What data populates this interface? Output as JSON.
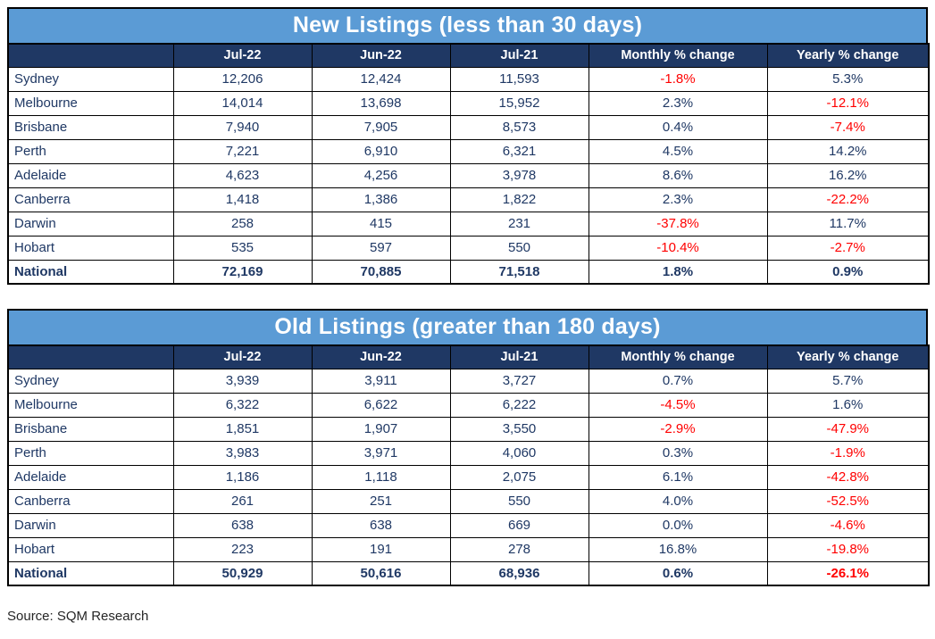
{
  "source": "Source: SQM Research",
  "colors": {
    "title_bg": "#5b9bd5",
    "header_bg": "#1f3864",
    "text_navy": "#1f3864",
    "negative_red": "#ff0000",
    "border_color": "#000000",
    "source_color": "#262626"
  },
  "chart_data": [
    {
      "type": "table",
      "title": "New Listings (less than 30 days)",
      "columns": [
        "",
        "Jul-22",
        "Jun-22",
        "Jul-21",
        "Monthly % change",
        "Yearly % change"
      ],
      "rows": [
        {
          "label": "Sydney",
          "cells": [
            "12,206",
            "12,424",
            "11,593",
            "-1.8%",
            "5.3%"
          ],
          "bold": false
        },
        {
          "label": "Melbourne",
          "cells": [
            "14,014",
            "13,698",
            "15,952",
            "2.3%",
            "-12.1%"
          ],
          "bold": false
        },
        {
          "label": "Brisbane",
          "cells": [
            "7,940",
            "7,905",
            "8,573",
            "0.4%",
            "-7.4%"
          ],
          "bold": false
        },
        {
          "label": "Perth",
          "cells": [
            "7,221",
            "6,910",
            "6,321",
            "4.5%",
            "14.2%"
          ],
          "bold": false
        },
        {
          "label": "Adelaide",
          "cells": [
            "4,623",
            "4,256",
            "3,978",
            "8.6%",
            "16.2%"
          ],
          "bold": false
        },
        {
          "label": "Canberra",
          "cells": [
            "1,418",
            "1,386",
            "1,822",
            "2.3%",
            "-22.2%"
          ],
          "bold": false
        },
        {
          "label": "Darwin",
          "cells": [
            "258",
            "415",
            "231",
            "-37.8%",
            "11.7%"
          ],
          "bold": false
        },
        {
          "label": "Hobart",
          "cells": [
            "535",
            "597",
            "550",
            "-10.4%",
            "-2.7%"
          ],
          "bold": false
        },
        {
          "label": "National",
          "cells": [
            "72,169",
            "70,885",
            "71,518",
            "1.8%",
            "0.9%"
          ],
          "bold": true
        }
      ]
    },
    {
      "type": "table",
      "title": "Old Listings (greater than 180 days)",
      "columns": [
        "",
        "Jul-22",
        "Jun-22",
        "Jul-21",
        "Monthly % change",
        "Yearly % change"
      ],
      "rows": [
        {
          "label": "Sydney",
          "cells": [
            "3,939",
            "3,911",
            "3,727",
            "0.7%",
            "5.7%"
          ],
          "bold": false
        },
        {
          "label": "Melbourne",
          "cells": [
            "6,322",
            "6,622",
            "6,222",
            "-4.5%",
            "1.6%"
          ],
          "bold": false
        },
        {
          "label": "Brisbane",
          "cells": [
            "1,851",
            "1,907",
            "3,550",
            "-2.9%",
            "-47.9%"
          ],
          "bold": false
        },
        {
          "label": "Perth",
          "cells": [
            "3,983",
            "3,971",
            "4,060",
            "0.3%",
            "-1.9%"
          ],
          "bold": false
        },
        {
          "label": "Adelaide",
          "cells": [
            "1,186",
            "1,118",
            "2,075",
            "6.1%",
            "-42.8%"
          ],
          "bold": false
        },
        {
          "label": "Canberra",
          "cells": [
            "261",
            "251",
            "550",
            "4.0%",
            "-52.5%"
          ],
          "bold": false
        },
        {
          "label": "Darwin",
          "cells": [
            "638",
            "638",
            "669",
            "0.0%",
            "-4.6%"
          ],
          "bold": false
        },
        {
          "label": "Hobart",
          "cells": [
            "223",
            "191",
            "278",
            "16.8%",
            "-19.8%"
          ],
          "bold": false
        },
        {
          "label": "National",
          "cells": [
            "50,929",
            "50,616",
            "68,936",
            "0.6%",
            "-26.1%"
          ],
          "bold": true
        }
      ]
    }
  ]
}
